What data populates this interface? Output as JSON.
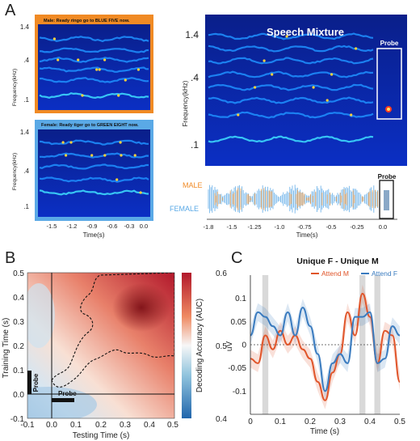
{
  "panel_labels": [
    "A",
    "B",
    "C"
  ],
  "panel_a": {
    "male_title": "Male: Ready ringo go to BLUE FIVE now.",
    "female_title": "Female: Ready tiger go to GREEN EIGHT now.",
    "small_y_label": "Frequency(kHz)",
    "small_y_ticks": [
      "1.4",
      ".4",
      ".1"
    ],
    "small_x_ticks": [
      "-1.5",
      "-1.2",
      "-0.9",
      "-0.6",
      "-0.3",
      "0.0"
    ],
    "small_x_label": "Time(s)",
    "mixture_title": "Speech Mixture",
    "probe_label": "Probe",
    "large_y_label": "Frequency(kHz)",
    "large_y_ticks": [
      "1.4",
      ".4",
      ".1"
    ],
    "wave_labels": [
      "MALE",
      "FEMALE"
    ],
    "wave_x_ticks": [
      "-1.8",
      "-1.5",
      "-1.25",
      "-1.0",
      "-0.75",
      "-0.5",
      "-0.25",
      "0.0"
    ],
    "wave_x_label": "Time(s)",
    "colors": {
      "male": "#f08a24",
      "female": "#5aa9e6"
    }
  },
  "panel_b": {
    "ylabel": "Training Time (s)",
    "xlabel": "Testing Time (s)",
    "colorbar_label": "Decoding Accuracy (AUC)",
    "x_ticks": [
      "-0.1",
      "0.0",
      "0.1",
      "0.2",
      "0.3",
      "0.4",
      "0.5"
    ],
    "y_ticks": [
      "0.5",
      "0.4",
      "0.3",
      "0.2",
      "0.1",
      "0.0",
      "-0.1"
    ],
    "cbar_ticks": [
      "0.6",
      "0.5",
      "0.4"
    ],
    "probe_label": "Probe"
  },
  "chart_data": {
    "type": "line",
    "title": "Unique F - Unique M",
    "xlabel": "Time (s)",
    "ylabel": "uV",
    "xlim": [
      0,
      0.5
    ],
    "ylim": [
      -0.15,
      0.15
    ],
    "x_ticks": [
      "0",
      "0.1",
      "0.2",
      "0.3",
      "0.4",
      "0.5"
    ],
    "y_ticks": [
      "0.1",
      "0.05",
      "0",
      "-0.05",
      "-0.1"
    ],
    "legend_placement": "top-right",
    "x": [
      0.0,
      0.025,
      0.05,
      0.075,
      0.1,
      0.125,
      0.15,
      0.175,
      0.2,
      0.225,
      0.25,
      0.275,
      0.3,
      0.325,
      0.35,
      0.375,
      0.4,
      0.425,
      0.45,
      0.475,
      0.5
    ],
    "series": [
      {
        "name": "Attend M",
        "color": "#e0552a",
        "values": [
          -0.03,
          -0.04,
          0.02,
          -0.01,
          0.03,
          0.0,
          0.02,
          -0.01,
          -0.03,
          -0.08,
          -0.12,
          -0.06,
          -0.02,
          0.07,
          0.02,
          0.11,
          0.06,
          -0.04,
          0.03,
          0.02,
          -0.08
        ]
      },
      {
        "name": "Attend F",
        "color": "#3a7bbf",
        "values": [
          0.02,
          0.07,
          0.06,
          0.04,
          0.02,
          0.07,
          0.02,
          0.08,
          0.04,
          -0.02,
          -0.1,
          -0.04,
          -0.02,
          -0.04,
          0.06,
          0.06,
          0.07,
          -0.04,
          -0.03,
          0.04,
          0.02
        ]
      }
    ],
    "highlight_spans": [
      [
        0.04,
        0.06
      ],
      [
        0.365,
        0.385
      ],
      [
        0.415,
        0.435
      ]
    ]
  }
}
